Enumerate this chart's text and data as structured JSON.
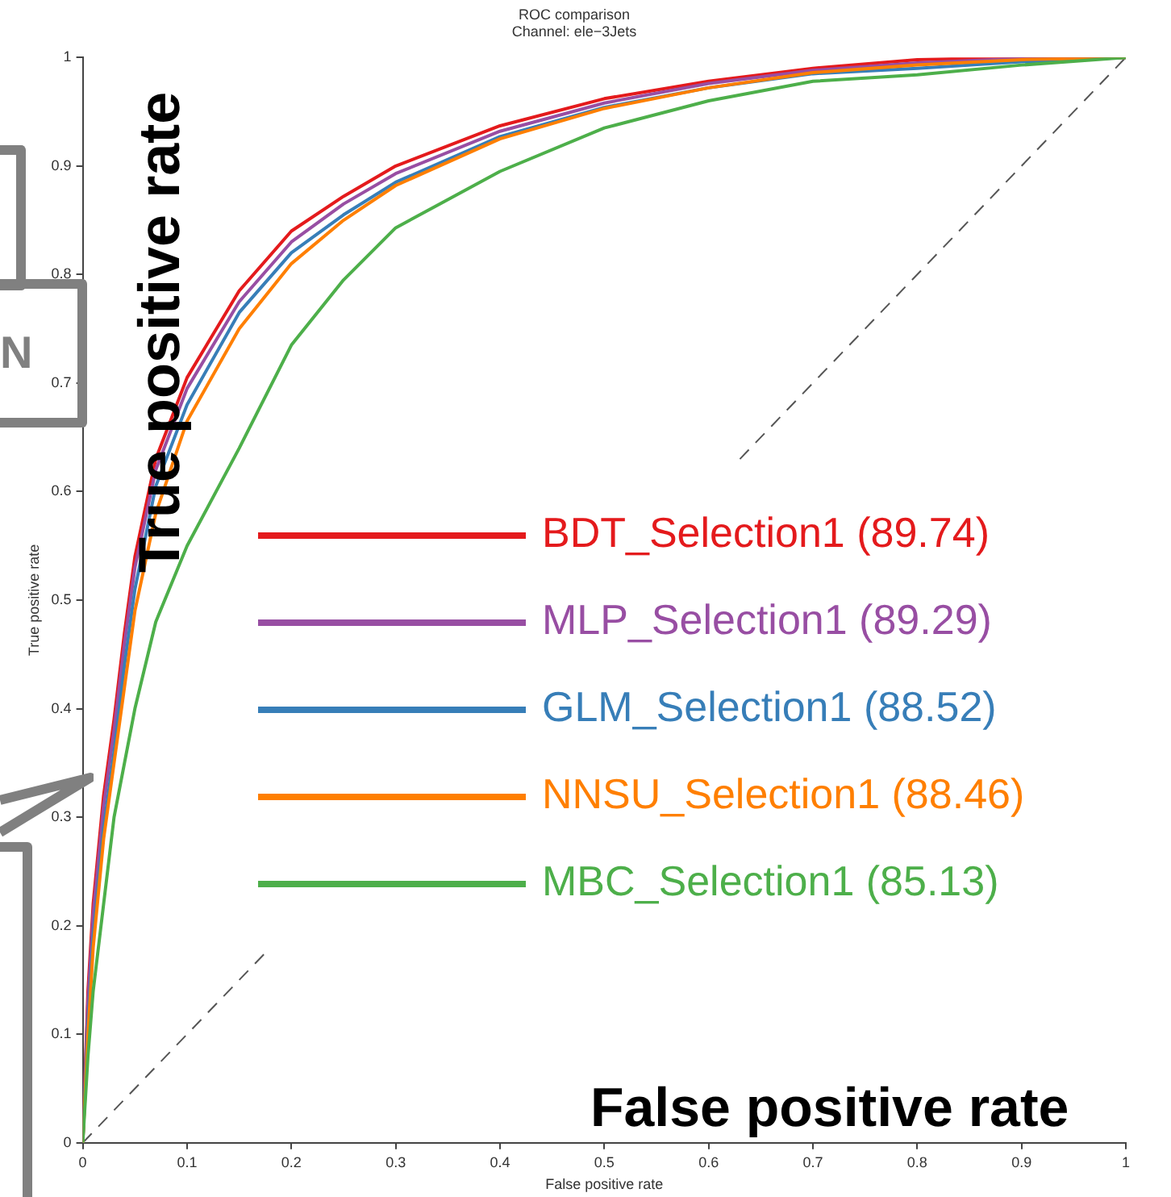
{
  "chart_data": {
    "type": "line",
    "title": "ROC comparison",
    "subtitle": "Channel: ele−3Jets",
    "xlabel": "False positive rate",
    "ylabel": "True positive rate",
    "annotations": [
      "True positive rate",
      "False positive rate",
      "N"
    ],
    "x": [
      0,
      0.005,
      0.01,
      0.02,
      0.03,
      0.04,
      0.05,
      0.07,
      0.1,
      0.15,
      0.2,
      0.25,
      0.3,
      0.4,
      0.5,
      0.6,
      0.7,
      0.8,
      0.9,
      1
    ],
    "series": [
      {
        "name": "BDT_Selection1 (89.74)",
        "color": "#e41a1c",
        "values": [
          0,
          0.14,
          0.22,
          0.32,
          0.39,
          0.47,
          0.54,
          0.63,
          0.705,
          0.785,
          0.84,
          0.872,
          0.9,
          0.937,
          0.962,
          0.978,
          0.99,
          0.998,
          1,
          1
        ]
      },
      {
        "name": "MLP_Selection1 (89.29)",
        "color": "#984ea3",
        "values": [
          0,
          0.13,
          0.21,
          0.31,
          0.38,
          0.46,
          0.53,
          0.62,
          0.695,
          0.775,
          0.83,
          0.865,
          0.893,
          0.932,
          0.958,
          0.976,
          0.988,
          0.995,
          0.999,
          1
        ]
      },
      {
        "name": "GLM_Selection1 (88.52)",
        "color": "#377eb8",
        "values": [
          0,
          0.11,
          0.19,
          0.29,
          0.36,
          0.44,
          0.51,
          0.605,
          0.68,
          0.765,
          0.82,
          0.855,
          0.885,
          0.927,
          0.954,
          0.972,
          0.985,
          0.99,
          0.996,
          1
        ]
      },
      {
        "name": "NNSU_Selection1 (88.46)",
        "color": "#ff7f00",
        "values": [
          0,
          0.1,
          0.18,
          0.28,
          0.35,
          0.42,
          0.49,
          0.58,
          0.665,
          0.75,
          0.81,
          0.85,
          0.882,
          0.925,
          0.953,
          0.972,
          0.986,
          0.993,
          0.998,
          1
        ]
      },
      {
        "name": "MBC_Selection1 (85.13)",
        "color": "#4daf4a",
        "values": [
          0,
          0.08,
          0.14,
          0.22,
          0.3,
          0.35,
          0.4,
          0.48,
          0.55,
          0.64,
          0.735,
          0.795,
          0.843,
          0.895,
          0.935,
          0.96,
          0.978,
          0.984,
          0.993,
          1
        ]
      },
      {
        "color": "#555555",
        "line_style": "dashed",
        "x": [
          0,
          0.18,
          0.4,
          0.63,
          1
        ],
        "values": [
          0,
          0.18,
          null,
          0.63,
          1
        ]
      }
    ],
    "xlim": [
      0,
      1
    ],
    "ylim": [
      0,
      1
    ],
    "xticks": [
      0,
      0.1,
      0.2,
      0.3,
      0.4,
      0.5,
      0.6,
      0.7,
      0.8,
      0.9,
      1
    ],
    "yticks": [
      0,
      0.1,
      0.2,
      0.3,
      0.4,
      0.5,
      0.6,
      0.7,
      0.8,
      0.9,
      1
    ],
    "grid": false,
    "legend": "right",
    "marker": "none",
    "line_style": "solid"
  }
}
